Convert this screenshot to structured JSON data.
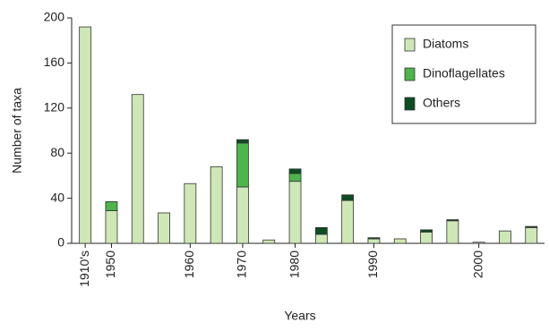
{
  "chart_data": {
    "type": "stacked_bar",
    "y_label": "Number of taxa",
    "x_label": "Years",
    "categories": [
      "1910's",
      "1950",
      null,
      null,
      "1960",
      null,
      "1970",
      null,
      "1980",
      null,
      null,
      "1990",
      null,
      null,
      null,
      "2000",
      null,
      null
    ],
    "series": [
      {
        "name": "Diatoms",
        "color": "#cde8b5",
        "values": [
          192,
          29,
          132,
          27,
          53,
          68,
          50,
          3,
          55,
          8,
          38,
          4,
          4,
          10,
          20,
          1,
          11,
          14
        ]
      },
      {
        "name": "Dinoflagellates",
        "color": "#4db54a",
        "values": [
          0,
          8,
          0,
          0,
          0,
          0,
          39,
          0,
          7,
          0,
          0,
          0,
          0,
          0,
          0,
          0,
          0,
          0
        ]
      },
      {
        "name": "Others",
        "color": "#0c4d22",
        "values": [
          0,
          0,
          0,
          0,
          0,
          0,
          3,
          0,
          4,
          6,
          5,
          1,
          0,
          2,
          1,
          0,
          0,
          1
        ]
      }
    ],
    "ylim": [
      0,
      200
    ],
    "yticks": [
      0,
      40,
      80,
      120,
      160,
      200
    ],
    "legend": "top-right"
  }
}
